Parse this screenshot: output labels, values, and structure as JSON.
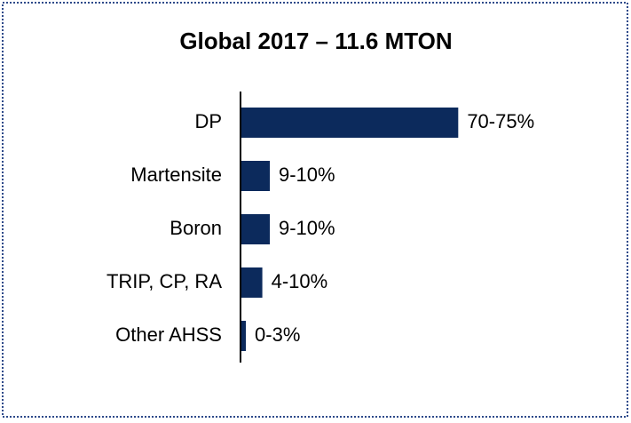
{
  "chart_data": {
    "type": "barh",
    "title": "Global 2017 – 11.6 MTON",
    "categories": [
      "DP",
      "Martensite",
      "Boron",
      "TRIP, CP, RA",
      "Other AHSS"
    ],
    "values": [
      72.5,
      9.5,
      9.5,
      7,
      1.5
    ],
    "value_labels": [
      "70-75%",
      "9-10%",
      "9-10%",
      "4-10%",
      "0-3%"
    ],
    "color": "#0c2a5c",
    "xlim": [
      0,
      100
    ]
  }
}
